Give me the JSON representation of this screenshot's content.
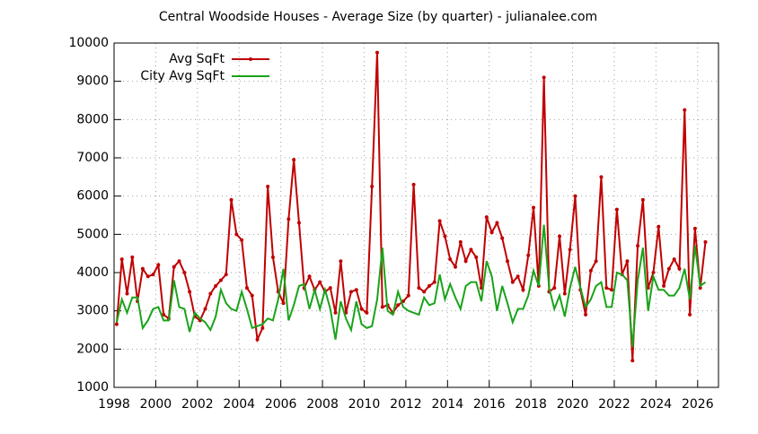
{
  "chart_data": {
    "type": "line",
    "title": "Central Woodside Houses - Average Size (by quarter) - julianalee.com",
    "x": [
      1998.125,
      1998.375,
      1998.625,
      1998.875,
      1999.125,
      1999.375,
      1999.625,
      1999.875,
      2000.125,
      2000.375,
      2000.625,
      2000.875,
      2001.125,
      2001.375,
      2001.625,
      2001.875,
      2002.125,
      2002.375,
      2002.625,
      2002.875,
      2003.125,
      2003.375,
      2003.625,
      2003.875,
      2004.125,
      2004.375,
      2004.625,
      2004.875,
      2005.125,
      2005.375,
      2005.625,
      2005.875,
      2006.125,
      2006.375,
      2006.625,
      2006.875,
      2007.125,
      2007.375,
      2007.625,
      2007.875,
      2008.125,
      2008.375,
      2008.625,
      2008.875,
      2009.125,
      2009.375,
      2009.625,
      2009.875,
      2010.125,
      2010.375,
      2010.625,
      2010.875,
      2011.125,
      2011.375,
      2011.625,
      2011.875,
      2012.125,
      2012.375,
      2012.625,
      2012.875,
      2013.125,
      2013.375,
      2013.625,
      2013.875,
      2014.125,
      2014.375,
      2014.625,
      2014.875,
      2015.125,
      2015.375,
      2015.625,
      2015.875,
      2016.125,
      2016.375,
      2016.625,
      2016.875,
      2017.125,
      2017.375,
      2017.625,
      2017.875,
      2018.125,
      2018.375,
      2018.625,
      2018.875,
      2019.125,
      2019.375,
      2019.625,
      2019.875,
      2020.125,
      2020.375,
      2020.625,
      2020.875,
      2021.125,
      2021.375,
      2021.625,
      2021.875,
      2022.125,
      2022.375,
      2022.625,
      2022.875,
      2023.125,
      2023.375,
      2023.625,
      2023.875,
      2024.125,
      2024.375,
      2024.625,
      2024.875,
      2025.125,
      2025.375,
      2025.625,
      2025.875,
      2026.125,
      2026.375
    ],
    "series": [
      {
        "name": "Avg SqFt",
        "color": "#c00000",
        "markers": true,
        "values": [
          2650,
          4350,
          3450,
          4400,
          3250,
          4100,
          3900,
          3950,
          4200,
          2900,
          2800,
          4150,
          4300,
          4000,
          3500,
          2850,
          2750,
          3050,
          3450,
          3650,
          3800,
          3950,
          5900,
          5000,
          4850,
          3600,
          3400,
          2250,
          2550,
          6250,
          4400,
          3500,
          3200,
          5400,
          6950,
          5300,
          3600,
          3900,
          3550,
          3750,
          3500,
          3600,
          2950,
          4300,
          2950,
          3500,
          3550,
          3050,
          2950,
          6250,
          9750,
          3100,
          3150,
          2950,
          3150,
          3250,
          3400,
          6300,
          3600,
          3500,
          3650,
          3750,
          5350,
          4950,
          4350,
          4150,
          4800,
          4300,
          4600,
          4400,
          3600,
          5450,
          5050,
          5300,
          4900,
          4300,
          3750,
          3900,
          3550,
          4450,
          5700,
          3650,
          9100,
          3500,
          3600,
          4950,
          3450,
          4600,
          6000,
          3550,
          2900,
          4050,
          4300,
          6500,
          3600,
          3550,
          5650,
          3950,
          4300,
          1700,
          4700,
          5900,
          3600,
          4000,
          5200,
          3650,
          4100,
          4350,
          4100,
          8250,
          2900,
          5150,
          3600,
          4800
        ]
      },
      {
        "name": "City Avg SqFt",
        "color": "#1aa31a",
        "markers": false,
        "values": [
          2700,
          3300,
          2950,
          3350,
          3350,
          2550,
          2750,
          3050,
          3100,
          2750,
          2750,
          3800,
          3100,
          3050,
          2450,
          2950,
          2800,
          2700,
          2500,
          2850,
          3550,
          3200,
          3050,
          3000,
          3500,
          3050,
          2550,
          2600,
          2650,
          2800,
          2750,
          3300,
          4100,
          2750,
          3150,
          3650,
          3700,
          3050,
          3550,
          3050,
          3550,
          3050,
          2250,
          3250,
          2800,
          2500,
          3250,
          2650,
          2550,
          2600,
          3300,
          4650,
          3000,
          2900,
          3500,
          3100,
          3000,
          2950,
          2900,
          3350,
          3150,
          3200,
          3950,
          3300,
          3700,
          3350,
          3050,
          3650,
          3750,
          3750,
          3250,
          4300,
          3900,
          3000,
          3650,
          3200,
          2700,
          3050,
          3050,
          3400,
          4050,
          3650,
          5250,
          3600,
          3050,
          3400,
          2850,
          3600,
          4150,
          3600,
          3100,
          3300,
          3650,
          3750,
          3100,
          3100,
          4000,
          3950,
          3800,
          2050,
          3800,
          4650,
          3000,
          3900,
          3550,
          3550,
          3400,
          3400,
          3600,
          4100,
          3300,
          4700,
          3650,
          3750
        ]
      }
    ],
    "xlim": [
      1998,
      2027
    ],
    "xticks": [
      1998,
      2000,
      2002,
      2004,
      2006,
      2008,
      2010,
      2012,
      2014,
      2016,
      2018,
      2020,
      2022,
      2024,
      2026
    ],
    "ylim": [
      1000,
      10000
    ],
    "yticks": [
      1000,
      2000,
      3000,
      4000,
      5000,
      6000,
      7000,
      8000,
      9000,
      10000
    ],
    "grid": true,
    "legend": "top-left"
  }
}
